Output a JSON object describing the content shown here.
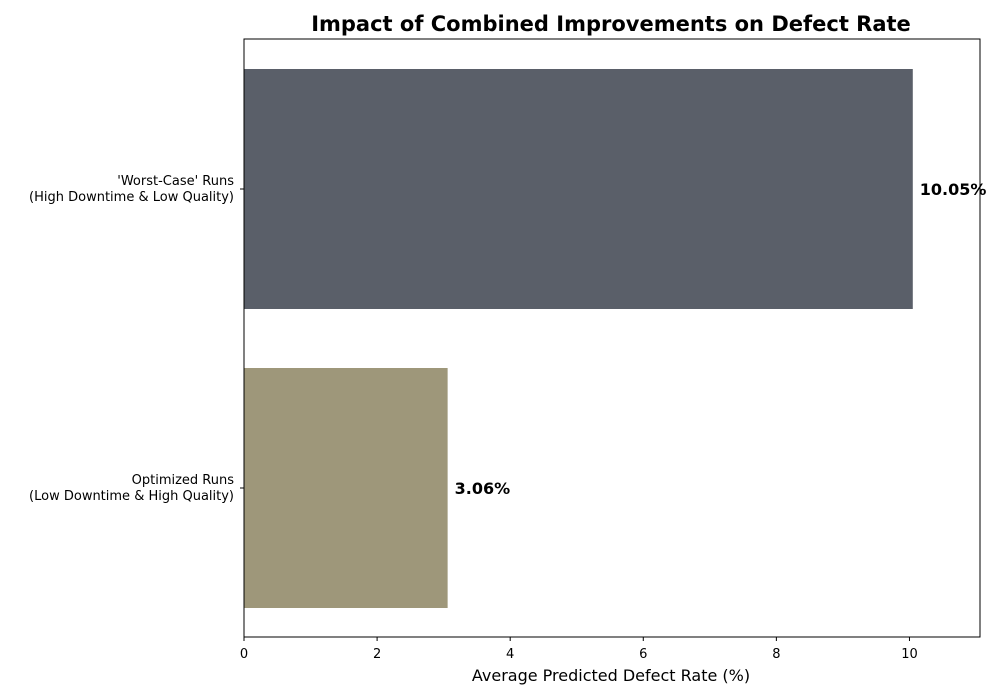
{
  "chart_data": {
    "type": "bar",
    "orientation": "horizontal",
    "title": "Impact of Combined Improvements on Defect Rate",
    "xlabel": "Average Predicted Defect Rate (%)",
    "ylabel": "",
    "xlim": [
      0,
      11.06
    ],
    "xticks": [
      0,
      2,
      4,
      6,
      8,
      10
    ],
    "grid": false,
    "categories": [
      [
        "'Worst-Case' Runs",
        "(High Downtime & Low Quality)"
      ],
      [
        "Optimized Runs",
        "(Low Downtime & High Quality)"
      ]
    ],
    "values": [
      10.05,
      3.06
    ],
    "data_labels": [
      "10.05%",
      "3.06%"
    ],
    "colors": [
      "#5a5f69",
      "#9e977a"
    ]
  }
}
